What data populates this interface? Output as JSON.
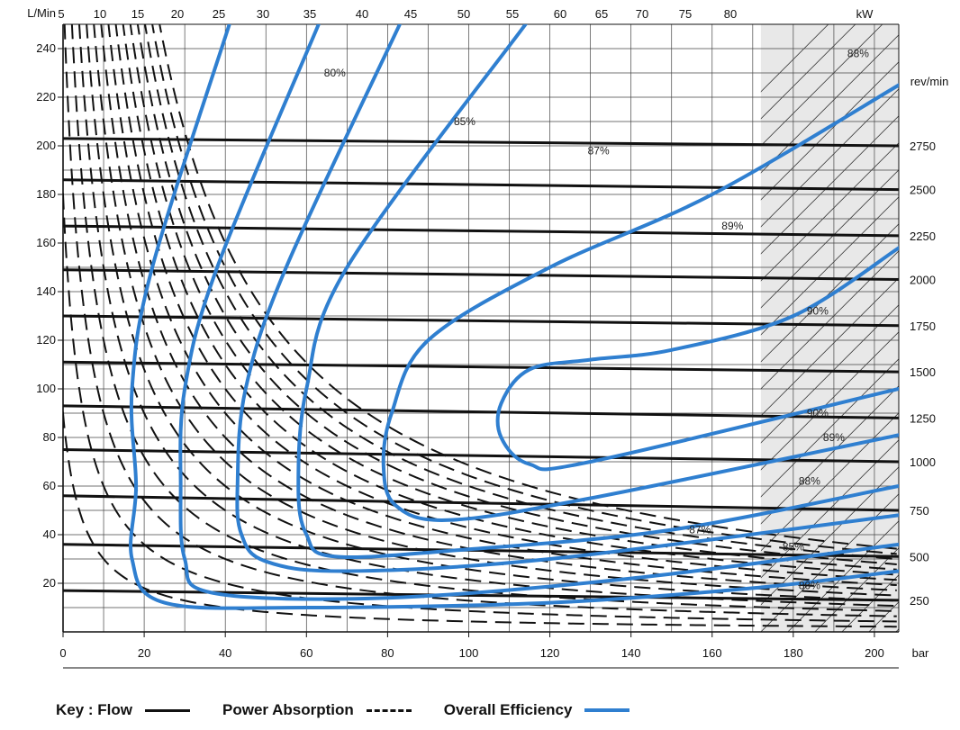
{
  "chart_data": {
    "type": "line",
    "axes": {
      "left": {
        "label": "L/Min",
        "range": [
          0,
          250
        ],
        "ticks": [
          20,
          40,
          60,
          80,
          100,
          120,
          140,
          160,
          180,
          200,
          220,
          240
        ]
      },
      "bottom": {
        "label": "bar",
        "range": [
          0,
          206
        ],
        "ticks": [
          0,
          20,
          40,
          60,
          80,
          100,
          120,
          140,
          160,
          180,
          200
        ]
      },
      "top": {
        "label": "kW",
        "ticks": [
          5,
          10,
          15,
          20,
          25,
          30,
          35,
          40,
          45,
          50,
          55,
          60,
          65,
          70,
          75,
          80
        ]
      },
      "right": {
        "label": "rev/min",
        "ticks": [
          250,
          500,
          750,
          1000,
          1250,
          1500,
          1750,
          2000,
          2250,
          2500,
          2750
        ]
      }
    },
    "grid": true,
    "shaded_region_bar": [
      172,
      206
    ],
    "flow_lines": [
      {
        "rev": 250,
        "y0": 17,
        "y1": 13
      },
      {
        "rev": 500,
        "y0": 36,
        "y1": 31
      },
      {
        "rev": 750,
        "y0": 56,
        "y1": 50
      },
      {
        "rev": 1000,
        "y0": 75,
        "y1": 70
      },
      {
        "rev": 1250,
        "y0": 93,
        "y1": 88
      },
      {
        "rev": 1500,
        "y0": 111,
        "y1": 107
      },
      {
        "rev": 1750,
        "y0": 130,
        "y1": 126
      },
      {
        "rev": 2000,
        "y0": 149,
        "y1": 145
      },
      {
        "rev": 2250,
        "y0": 167,
        "y1": 163
      },
      {
        "rev": 2500,
        "y0": 186,
        "y1": 182
      },
      {
        "rev": 2750,
        "y0": 203,
        "y1": 200
      }
    ],
    "power_lines_kW": [
      5,
      10,
      15,
      20,
      25,
      30,
      35,
      40,
      45,
      50,
      55,
      60,
      65,
      70,
      75,
      80
    ],
    "efficiency_curves": [
      {
        "label": "80%",
        "points": [
          [
            41,
            250
          ],
          [
            22,
            150
          ],
          [
            17,
            100
          ],
          [
            18,
            60
          ],
          [
            17,
            30
          ],
          [
            25,
            12
          ],
          [
            60,
            10
          ],
          [
            120,
            12
          ],
          [
            170,
            18
          ],
          [
            206,
            25
          ]
        ]
      },
      {
        "label": "85%",
        "points": [
          [
            63,
            250
          ],
          [
            38,
            150
          ],
          [
            30,
            100
          ],
          [
            29,
            60
          ],
          [
            30,
            30
          ],
          [
            37,
            16
          ],
          [
            80,
            14
          ],
          [
            140,
            22
          ],
          [
            206,
            36
          ]
        ]
      },
      {
        "label": "87%",
        "points": [
          [
            83,
            250
          ],
          [
            55,
            150
          ],
          [
            45,
            100
          ],
          [
            43,
            60
          ],
          [
            44,
            40
          ],
          [
            50,
            29
          ],
          [
            70,
            25
          ],
          [
            120,
            30
          ],
          [
            206,
            48
          ]
        ]
      },
      {
        "label": "88%",
        "points": [
          [
            114,
            250
          ],
          [
            70,
            150
          ],
          [
            60,
            100
          ],
          [
            58,
            60
          ],
          [
            60,
            40
          ],
          [
            67,
            31
          ],
          [
            100,
            34
          ],
          [
            150,
            42
          ],
          [
            206,
            60
          ]
        ]
      },
      {
        "label": "89%",
        "points": [
          [
            206,
            225
          ],
          [
            160,
            180
          ],
          [
            120,
            150
          ],
          [
            90,
            120
          ],
          [
            81,
            90
          ],
          [
            79,
            68
          ],
          [
            82,
            52
          ],
          [
            95,
            46
          ],
          [
            130,
            55
          ],
          [
            206,
            81
          ]
        ]
      },
      {
        "label": "90%",
        "points": [
          [
            206,
            158
          ],
          [
            180,
            130
          ],
          [
            150,
            116
          ],
          [
            130,
            112
          ],
          [
            115,
            108
          ],
          [
            108,
            94
          ],
          [
            108,
            80
          ],
          [
            115,
            69
          ],
          [
            130,
            70
          ],
          [
            206,
            100
          ]
        ]
      }
    ],
    "efficiency_labels": [
      {
        "text": "80%",
        "x": 67,
        "y": 230
      },
      {
        "text": "85%",
        "x": 99,
        "y": 210
      },
      {
        "text": "87%",
        "x": 132,
        "y": 198
      },
      {
        "text": "88%",
        "x": 196,
        "y": 238
      },
      {
        "text": "89%",
        "x": 165,
        "y": 167
      },
      {
        "text": "90%",
        "x": 186,
        "y": 132
      },
      {
        "text": "90%",
        "x": 186,
        "y": 90
      },
      {
        "text": "89%",
        "x": 190,
        "y": 80
      },
      {
        "text": "88%",
        "x": 184,
        "y": 62
      },
      {
        "text": "87%",
        "x": 157,
        "y": 42
      },
      {
        "text": "85%",
        "x": 180,
        "y": 35
      },
      {
        "text": "80%",
        "x": 184,
        "y": 19
      }
    ]
  },
  "key": {
    "label": "Key : Flow",
    "power_label": "Power Absorption",
    "efficiency_label": "Overall Efficiency"
  },
  "colors": {
    "efficiency": "#2f7fd0",
    "lines": "#111111",
    "grid": "#444444",
    "shade": "#e8e8e8"
  }
}
